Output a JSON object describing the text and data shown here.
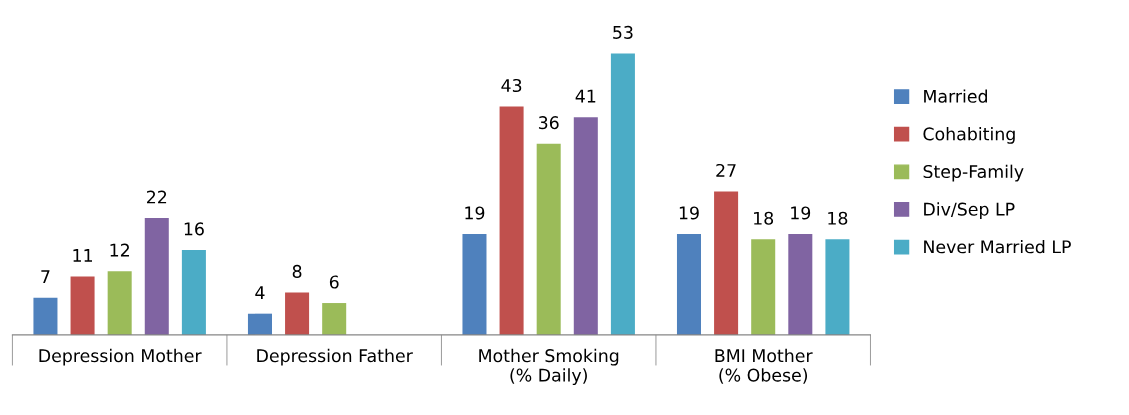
{
  "chart_data": {
    "type": "bar",
    "categories": [
      "Depression Mother",
      "Depression Father",
      "Mother Smoking\n(% Daily)",
      "BMI Mother\n(% Obese)"
    ],
    "series": [
      {
        "name": "Married",
        "color": "#4f81bd",
        "values": [
          7,
          4,
          19,
          19
        ]
      },
      {
        "name": "Cohabiting",
        "color": "#c0504d",
        "values": [
          11,
          8,
          43,
          27
        ]
      },
      {
        "name": "Step-Family",
        "color": "#9bbb59",
        "values": [
          12,
          6,
          36,
          18
        ]
      },
      {
        "name": "Div/Sep LP",
        "color": "#8064a2",
        "values": [
          22,
          null,
          41,
          19
        ]
      },
      {
        "name": "Never Married LP",
        "color": "#4bacc6",
        "values": [
          16,
          null,
          53,
          18
        ]
      }
    ],
    "data_labels": true,
    "legend": "right",
    "grid": false,
    "tick_labels": "x"
  }
}
